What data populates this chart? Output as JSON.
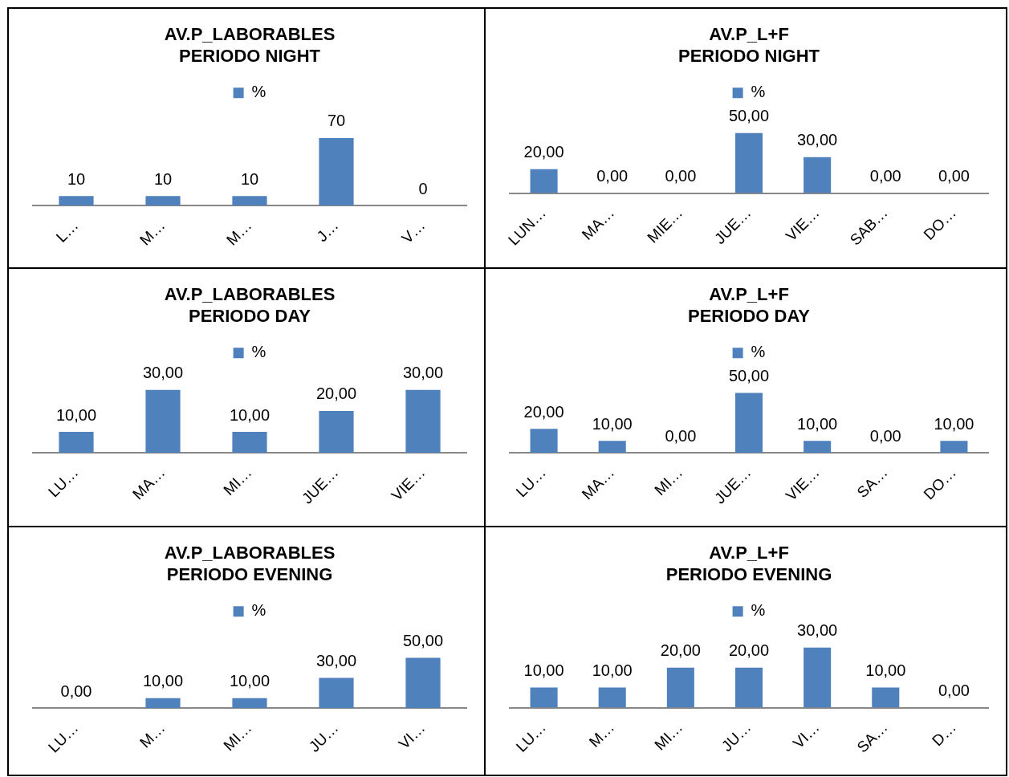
{
  "chart_data": [
    {
      "type": "bar",
      "title": "AV.P_LABORABLES\nPERIODO NIGHT",
      "categories": [
        "L…",
        "M…",
        "M…",
        "J…",
        "V…"
      ],
      "series": [
        {
          "name": "%",
          "color": "#4f81bd",
          "values": [
            10,
            10,
            10,
            70,
            0
          ],
          "value_labels": [
            "10",
            "10",
            "10",
            "70",
            "0"
          ]
        }
      ],
      "legend": "top",
      "grid": false,
      "tick_labels": "x"
    },
    {
      "type": "bar",
      "title": "AV.P_L+F\nPERIODO NIGHT",
      "categories": [
        "LUN…",
        "MA…",
        "MIE…",
        "JUE…",
        "VIE…",
        "SAB…",
        "DO…"
      ],
      "series": [
        {
          "name": "%",
          "color": "#4f81bd",
          "values": [
            20,
            0,
            0,
            50,
            30,
            0,
            0
          ],
          "value_labels": [
            "20,00",
            "0,00",
            "0,00",
            "50,00",
            "30,00",
            "0,00",
            "0,00"
          ]
        }
      ],
      "legend": "top",
      "grid": false,
      "tick_labels": "x"
    },
    {
      "type": "bar",
      "title": "AV.P_LABORABLES\nPERIODO DAY",
      "categories": [
        "LU…",
        "MA…",
        "MI…",
        "JUE…",
        "VIE…"
      ],
      "series": [
        {
          "name": "%",
          "color": "#4f81bd",
          "values": [
            10,
            30,
            10,
            20,
            30
          ],
          "value_labels": [
            "10,00",
            "30,00",
            "10,00",
            "20,00",
            "30,00"
          ]
        }
      ],
      "legend": "top",
      "grid": false,
      "tick_labels": "x"
    },
    {
      "type": "bar",
      "title": "AV.P_L+F\nPERIODO DAY",
      "categories": [
        "LU…",
        "MA…",
        "MI…",
        "JUE…",
        "VIE…",
        "SA…",
        "DO…"
      ],
      "series": [
        {
          "name": "%",
          "color": "#4f81bd",
          "values": [
            20,
            10,
            0,
            50,
            10,
            0,
            10
          ],
          "value_labels": [
            "20,00",
            "10,00",
            "0,00",
            "50,00",
            "10,00",
            "0,00",
            "10,00"
          ]
        }
      ],
      "legend": "top",
      "grid": false,
      "tick_labels": "x"
    },
    {
      "type": "bar",
      "title": "AV.P_LABORABLES\nPERIODO EVENING",
      "categories": [
        "LU…",
        "M…",
        "MI…",
        "JU…",
        "VI…"
      ],
      "series": [
        {
          "name": "%",
          "color": "#4f81bd",
          "values": [
            0,
            10,
            10,
            30,
            50
          ],
          "value_labels": [
            "0,00",
            "10,00",
            "10,00",
            "30,00",
            "50,00"
          ]
        }
      ],
      "legend": "top",
      "grid": false,
      "tick_labels": "x"
    },
    {
      "type": "bar",
      "title": "AV.P_L+F\nPERIODO EVENING",
      "categories": [
        "LU…",
        "M…",
        "MI…",
        "JU…",
        "VI…",
        "SA…",
        "D…"
      ],
      "series": [
        {
          "name": "%",
          "color": "#4f81bd",
          "values": [
            10,
            10,
            20,
            20,
            30,
            10,
            0
          ],
          "value_labels": [
            "10,00",
            "10,00",
            "20,00",
            "20,00",
            "30,00",
            "10,00",
            "0,00"
          ]
        }
      ],
      "legend": "top",
      "grid": false,
      "tick_labels": "x"
    }
  ]
}
